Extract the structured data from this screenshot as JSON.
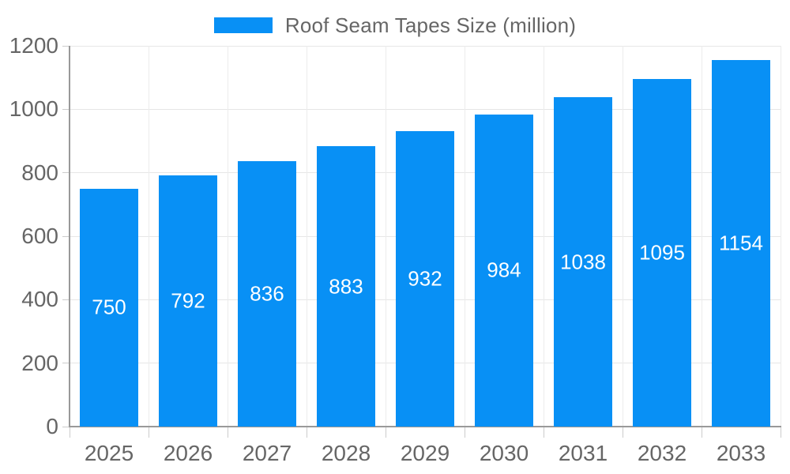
{
  "chart_data": {
    "type": "bar",
    "title": "Roof Seam Tapes Size (million)",
    "categories": [
      "2025",
      "2026",
      "2027",
      "2028",
      "2029",
      "2030",
      "2031",
      "2032",
      "2033"
    ],
    "values": [
      750,
      792,
      836,
      883,
      932,
      984,
      1038,
      1095,
      1154
    ],
    "ylim": [
      0,
      1200
    ],
    "yticks": [
      0,
      200,
      400,
      600,
      800,
      1000,
      1200
    ],
    "grid": true,
    "legend_position": "top",
    "bar_color": "#0890f5",
    "value_label_color": "#ffffff",
    "axis_text_color": "#666666",
    "gridline_color": "#e6e6e6",
    "axis_line_color": "#999999",
    "tick_color": "#cccccc"
  }
}
